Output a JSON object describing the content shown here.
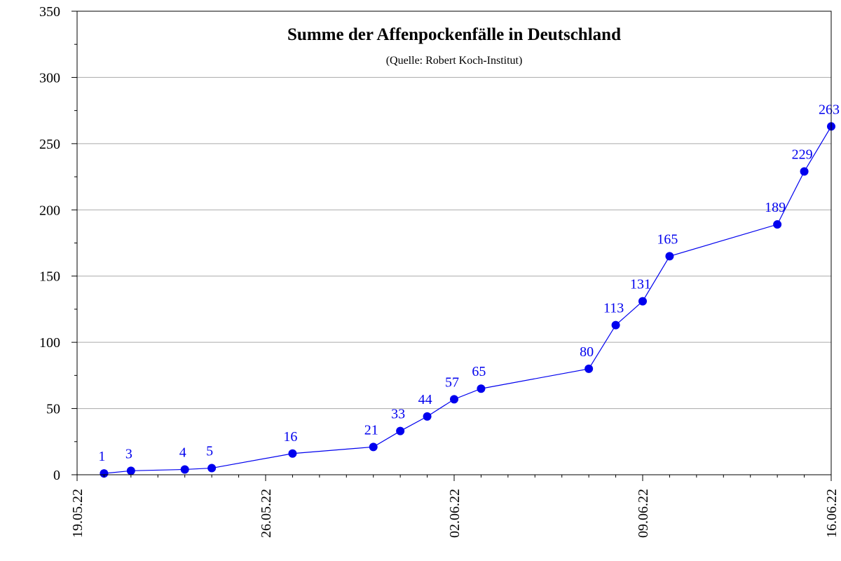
{
  "chart_data": {
    "type": "line",
    "title": "Summe der Affenpockenfälle in Deutschland",
    "subtitle": "(Quelle: Robert Koch-Institut)",
    "xlabel": "",
    "ylabel": "",
    "x_axis_type": "date",
    "xlim": [
      "2022-05-19",
      "2022-06-16"
    ],
    "ylim": [
      0,
      350
    ],
    "y_ticks": [
      0,
      50,
      100,
      150,
      200,
      250,
      300,
      350
    ],
    "y_tick_labels": [
      "0",
      "50",
      "100",
      "150",
      "200",
      "250",
      "300",
      "350"
    ],
    "x_ticks": [
      "2022-05-19",
      "2022-05-26",
      "2022-06-02",
      "2022-06-09",
      "2022-06-16"
    ],
    "x_tick_labels": [
      "19.05.22",
      "26.05.22",
      "02.06.22",
      "09.06.22",
      "16.06.22"
    ],
    "grid": "horizontal",
    "legend": "none",
    "series": [
      {
        "color": "#0000ee",
        "points": [
          {
            "x": "2022-05-20",
            "y": 1,
            "label": "1"
          },
          {
            "x": "2022-05-21",
            "y": 3,
            "label": "3"
          },
          {
            "x": "2022-05-23",
            "y": 4,
            "label": "4"
          },
          {
            "x": "2022-05-24",
            "y": 5,
            "label": "5"
          },
          {
            "x": "2022-05-27",
            "y": 16,
            "label": "16"
          },
          {
            "x": "2022-05-30",
            "y": 21,
            "label": "21"
          },
          {
            "x": "2022-05-31",
            "y": 33,
            "label": "33"
          },
          {
            "x": "2022-06-01",
            "y": 44,
            "label": "44"
          },
          {
            "x": "2022-06-02",
            "y": 57,
            "label": "57"
          },
          {
            "x": "2022-06-03",
            "y": 65,
            "label": "65"
          },
          {
            "x": "2022-06-07",
            "y": 80,
            "label": "80"
          },
          {
            "x": "2022-06-08",
            "y": 113,
            "label": "113"
          },
          {
            "x": "2022-06-09",
            "y": 131,
            "label": "131"
          },
          {
            "x": "2022-06-10",
            "y": 165,
            "label": "165"
          },
          {
            "x": "2022-06-14",
            "y": 189,
            "label": "189"
          },
          {
            "x": "2022-06-15",
            "y": 229,
            "label": "229"
          },
          {
            "x": "2022-06-16",
            "y": 263,
            "label": "263"
          }
        ]
      }
    ]
  }
}
